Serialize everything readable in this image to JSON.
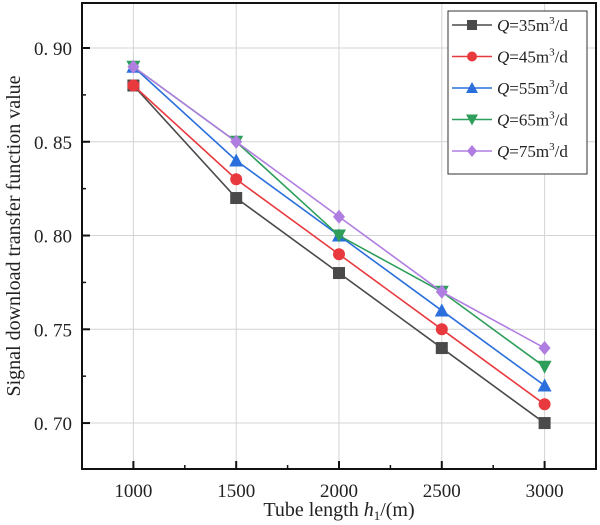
{
  "chart_data": {
    "type": "line",
    "title": "",
    "xlabel": "Tube length h1/(m)",
    "xlabel_parts": {
      "prefix": "Tube length ",
      "var": "h",
      "sub": "1",
      "suffix": "/(m)"
    },
    "ylabel": "Signal download transfer function value",
    "x": [
      1000,
      1500,
      2000,
      2500,
      3000
    ],
    "xlim": [
      750,
      3250
    ],
    "ylim": [
      0.6755,
      0.924
    ],
    "xticks": [
      "1000",
      "1500",
      "2000",
      "2500",
      "3000"
    ],
    "yticks": [
      "0.70",
      "0.75",
      "0.80",
      "0.85",
      "0.90"
    ],
    "grid": true,
    "legend_position": "top-right",
    "series": [
      {
        "name": "Q=35m3/d",
        "label_q": "Q",
        "label_val": "=35m",
        "label_sup": "3",
        "label_unit": "/d",
        "color": "#4a4a4a",
        "marker": "square",
        "values": [
          0.88,
          0.82,
          0.78,
          0.74,
          0.7
        ]
      },
      {
        "name": "Q=45m3/d",
        "label_q": "Q",
        "label_val": "=45m",
        "label_sup": "3",
        "label_unit": "/d",
        "color": "#e8393f",
        "marker": "circle",
        "values": [
          0.88,
          0.83,
          0.79,
          0.75,
          0.71
        ]
      },
      {
        "name": "Q=55m3/d",
        "label_q": "Q",
        "label_val": "=55m",
        "label_sup": "3",
        "label_unit": "/d",
        "color": "#2a6fdc",
        "marker": "triangle-up",
        "values": [
          0.89,
          0.84,
          0.8,
          0.76,
          0.72
        ]
      },
      {
        "name": "Q=65m3/d",
        "label_q": "Q",
        "label_val": "=65m",
        "label_sup": "3",
        "label_unit": "/d",
        "color": "#2e9e5a",
        "marker": "triangle-down",
        "values": [
          0.89,
          0.85,
          0.8,
          0.77,
          0.73
        ]
      },
      {
        "name": "Q=75m3/d",
        "label_q": "Q",
        "label_val": "=75m",
        "label_sup": "3",
        "label_unit": "/d",
        "color": "#b07ee0",
        "marker": "diamond",
        "values": [
          0.89,
          0.85,
          0.81,
          0.77,
          0.74
        ]
      }
    ]
  }
}
